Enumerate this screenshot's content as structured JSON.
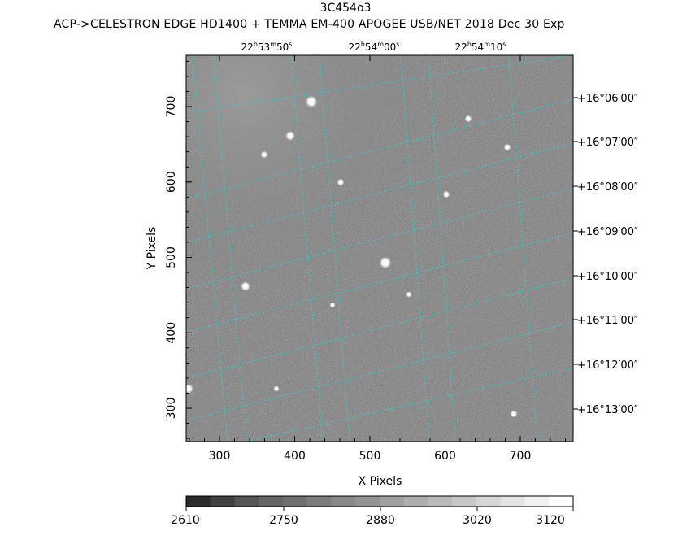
{
  "title": "3C454o3",
  "subtitle": "ACP->CELESTRON EDGE HD1400 + TEMMA EM-400 APOGEE USB/NET   2018 Dec 30    Exp",
  "x_axis_label": "X Pixels",
  "y_axis_label": "Y Pixels",
  "x_ticks": [
    "300",
    "400",
    "500",
    "600",
    "700"
  ],
  "y_ticks": [
    "300",
    "400",
    "500",
    "600",
    "700"
  ],
  "ra_labels": [
    {
      "h": "22",
      "m": "53",
      "s": "50"
    },
    {
      "h": "22",
      "m": "54",
      "s": "00"
    },
    {
      "h": "22",
      "m": "54",
      "s": "10"
    }
  ],
  "dec_labels": [
    "+16°06′00″",
    "+16°07′00″",
    "+16°08′00″",
    "+16°09′00″",
    "+16°10′00″",
    "+16°11′00″",
    "+16°12′00″",
    "+16°13′00″"
  ],
  "colorbar_labels": [
    "2610",
    "2750",
    "2880",
    "3020",
    "3120"
  ],
  "colors": {
    "grid": "#35c7c7",
    "background_gray": "#7a7a7a"
  }
}
